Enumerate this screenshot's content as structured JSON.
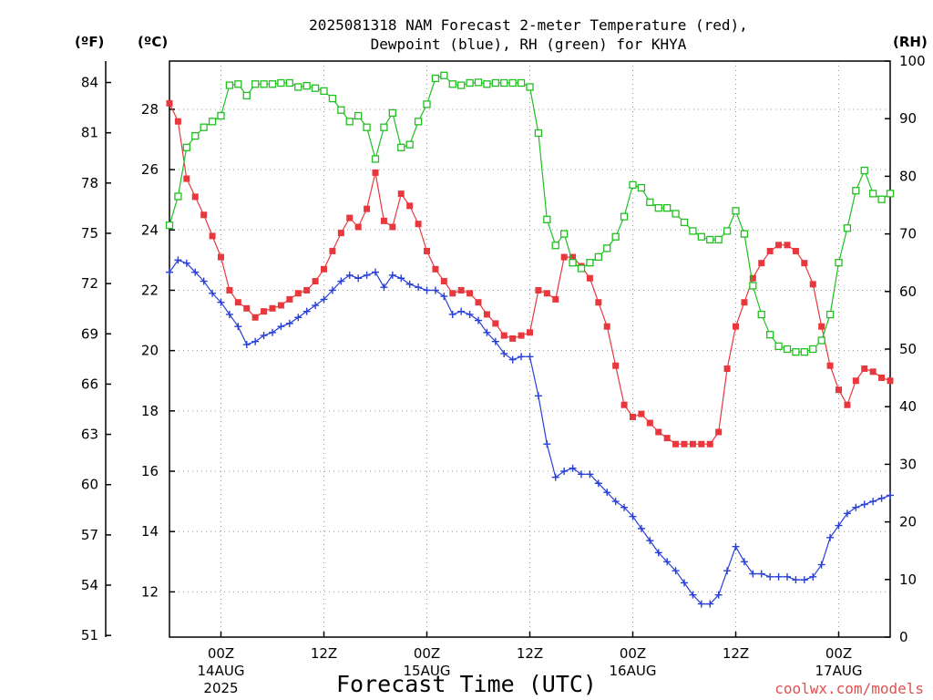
{
  "title": {
    "line1": "2025081318 NAM Forecast 2-meter Temperature (red),",
    "line2": "Dewpoint (blue), RH (green) for KHYA"
  },
  "units": {
    "f": "(ºF)",
    "c": "(ºC)",
    "rh": "(RH)"
  },
  "xlabel": "Forecast Time (UTC)",
  "credit": "coolwx.com/models",
  "colors": {
    "temperature": "#e8383d",
    "dewpoint": "#2840d8",
    "rh": "#20c020",
    "credit": "#e05050"
  },
  "chart_data": {
    "type": "line",
    "x_unit": "hours after 2025-08-13 18Z",
    "xlim": [
      0,
      84
    ],
    "x_ticks": [
      {
        "x": 6,
        "label": "00Z",
        "date": "14AUG",
        "year": "2025"
      },
      {
        "x": 18,
        "label": "12Z",
        "date": "",
        "year": ""
      },
      {
        "x": 30,
        "label": "00Z",
        "date": "15AUG",
        "year": ""
      },
      {
        "x": 42,
        "label": "12Z",
        "date": "",
        "year": ""
      },
      {
        "x": 54,
        "label": "00Z",
        "date": "16AUG",
        "year": ""
      },
      {
        "x": 66,
        "label": "12Z",
        "date": "",
        "year": ""
      },
      {
        "x": 78,
        "label": "00Z",
        "date": "17AUG",
        "year": ""
      }
    ],
    "ylim_c": [
      10.5,
      29.6
    ],
    "y_ticks_c": [
      "12",
      "14",
      "16",
      "18",
      "20",
      "22",
      "24",
      "26",
      "28"
    ],
    "y_ticks_f": [
      "51",
      "54",
      "57",
      "60",
      "63",
      "66",
      "69",
      "72",
      "75",
      "78",
      "81",
      "84"
    ],
    "ylim_rh": [
      0,
      100
    ],
    "y_ticks_rh": [
      "0",
      "10",
      "20",
      "30",
      "40",
      "50",
      "60",
      "70",
      "80",
      "90",
      "100"
    ],
    "grid": true,
    "series": [
      {
        "name": "Temperature (red)",
        "axis": "celsius",
        "marker": "filled-square",
        "color": "#e8383d",
        "x": [
          0,
          1,
          2,
          3,
          4,
          5,
          6,
          7,
          8,
          9,
          10,
          11,
          12,
          13,
          14,
          15,
          16,
          17,
          18,
          19,
          20,
          21,
          22,
          23,
          24,
          25,
          26,
          27,
          28,
          29,
          30,
          31,
          32,
          33,
          34,
          35,
          36,
          37,
          38,
          39,
          40,
          41,
          42,
          43,
          44,
          45,
          46,
          47,
          48,
          49,
          50,
          51,
          52,
          53,
          54,
          55,
          56,
          57,
          58,
          59,
          60,
          61,
          62,
          63,
          64,
          65,
          66,
          67,
          68,
          69,
          70,
          71,
          72,
          73,
          74,
          75,
          76,
          77,
          78,
          79,
          80,
          81,
          82,
          83,
          84
        ],
        "values": [
          28.2,
          27.6,
          25.7,
          25.1,
          24.5,
          23.8,
          23.1,
          22.0,
          21.6,
          21.4,
          21.1,
          21.3,
          21.4,
          21.5,
          21.7,
          21.9,
          22.0,
          22.3,
          22.7,
          23.3,
          23.9,
          24.4,
          24.1,
          24.7,
          25.9,
          24.3,
          24.1,
          25.2,
          24.8,
          24.2,
          23.3,
          22.7,
          22.3,
          21.9,
          22.0,
          21.9,
          21.6,
          21.2,
          20.9,
          20.5,
          20.4,
          20.5,
          20.6,
          22.0,
          21.9,
          21.7,
          23.1,
          23.1,
          22.8,
          22.4,
          21.6,
          20.8,
          19.5,
          18.2,
          17.8,
          17.9,
          17.6,
          17.3,
          17.1,
          16.9,
          16.9,
          16.9,
          16.9,
          16.9,
          17.3,
          19.4,
          20.8,
          21.6,
          22.4,
          22.9,
          23.3,
          23.5,
          23.5,
          23.3,
          22.9,
          22.2,
          20.8,
          19.5,
          18.7,
          18.2,
          19.0,
          19.4,
          19.3,
          19.1,
          19.0
        ]
      },
      {
        "name": "Dewpoint (blue)",
        "axis": "celsius",
        "marker": "plus",
        "color": "#2840d8",
        "x": [
          0,
          1,
          2,
          3,
          4,
          5,
          6,
          7,
          8,
          9,
          10,
          11,
          12,
          13,
          14,
          15,
          16,
          17,
          18,
          19,
          20,
          21,
          22,
          23,
          24,
          25,
          26,
          27,
          28,
          29,
          30,
          31,
          32,
          33,
          34,
          35,
          36,
          37,
          38,
          39,
          40,
          41,
          42,
          43,
          44,
          45,
          46,
          47,
          48,
          49,
          50,
          51,
          52,
          53,
          54,
          55,
          56,
          57,
          58,
          59,
          60,
          61,
          62,
          63,
          64,
          65,
          66,
          67,
          68,
          69,
          70,
          71,
          72,
          73,
          74,
          75,
          76,
          77,
          78,
          79,
          80,
          81,
          82,
          83,
          84
        ],
        "values": [
          22.6,
          23.0,
          22.9,
          22.6,
          22.3,
          21.9,
          21.6,
          21.2,
          20.8,
          20.2,
          20.3,
          20.5,
          20.6,
          20.8,
          20.9,
          21.1,
          21.3,
          21.5,
          21.7,
          22.0,
          22.3,
          22.5,
          22.4,
          22.5,
          22.6,
          22.1,
          22.5,
          22.4,
          22.2,
          22.1,
          22.0,
          22.0,
          21.8,
          21.2,
          21.3,
          21.2,
          21.0,
          20.6,
          20.3,
          19.9,
          19.7,
          19.8,
          19.8,
          18.5,
          16.9,
          15.8,
          16.0,
          16.1,
          15.9,
          15.9,
          15.6,
          15.3,
          15.0,
          14.8,
          14.5,
          14.1,
          13.7,
          13.3,
          13.0,
          12.7,
          12.3,
          11.9,
          11.6,
          11.6,
          11.9,
          12.7,
          13.5,
          13.0,
          12.6,
          12.6,
          12.5,
          12.5,
          12.5,
          12.4,
          12.4,
          12.5,
          12.9,
          13.8,
          14.2,
          14.6,
          14.8,
          14.9,
          15.0,
          15.1,
          15.2
        ]
      },
      {
        "name": "RH (green)",
        "axis": "rh",
        "marker": "open-square",
        "color": "#20c020",
        "x": [
          0,
          1,
          2,
          3,
          4,
          5,
          6,
          7,
          8,
          9,
          10,
          11,
          12,
          13,
          14,
          15,
          16,
          17,
          18,
          19,
          20,
          21,
          22,
          23,
          24,
          25,
          26,
          27,
          28,
          29,
          30,
          31,
          32,
          33,
          34,
          35,
          36,
          37,
          38,
          39,
          40,
          41,
          42,
          43,
          44,
          45,
          46,
          47,
          48,
          49,
          50,
          51,
          52,
          53,
          54,
          55,
          56,
          57,
          58,
          59,
          60,
          61,
          62,
          63,
          64,
          65,
          66,
          67,
          68,
          69,
          70,
          71,
          72,
          73,
          74,
          75,
          76,
          77,
          78,
          79,
          80,
          81,
          82,
          83,
          84
        ],
        "values": [
          71.5,
          76.5,
          85.0,
          87.0,
          88.5,
          89.5,
          90.5,
          95.8,
          96.0,
          94.0,
          96.0,
          96.0,
          96.0,
          96.2,
          96.2,
          95.5,
          95.7,
          95.3,
          94.8,
          93.5,
          91.5,
          89.5,
          90.5,
          88.5,
          83.0,
          88.5,
          91.0,
          85.0,
          85.5,
          89.5,
          92.5,
          97.0,
          97.5,
          96.0,
          95.8,
          96.2,
          96.3,
          96.0,
          96.2,
          96.2,
          96.2,
          96.2,
          95.5,
          87.5,
          72.5,
          68.0,
          70.0,
          65.0,
          64.0,
          65.0,
          66.0,
          67.5,
          69.5,
          73.0,
          78.5,
          78.0,
          75.5,
          74.5,
          74.5,
          73.5,
          72.0,
          70.5,
          69.5,
          69.0,
          69.0,
          70.5,
          74.0,
          70.0,
          61.0,
          56.0,
          52.5,
          50.5,
          50.0,
          49.5,
          49.5,
          50.0,
          51.5,
          56.0,
          65.0,
          71.0,
          77.5,
          81.0,
          77.0,
          76.0,
          77.0
        ]
      }
    ]
  }
}
